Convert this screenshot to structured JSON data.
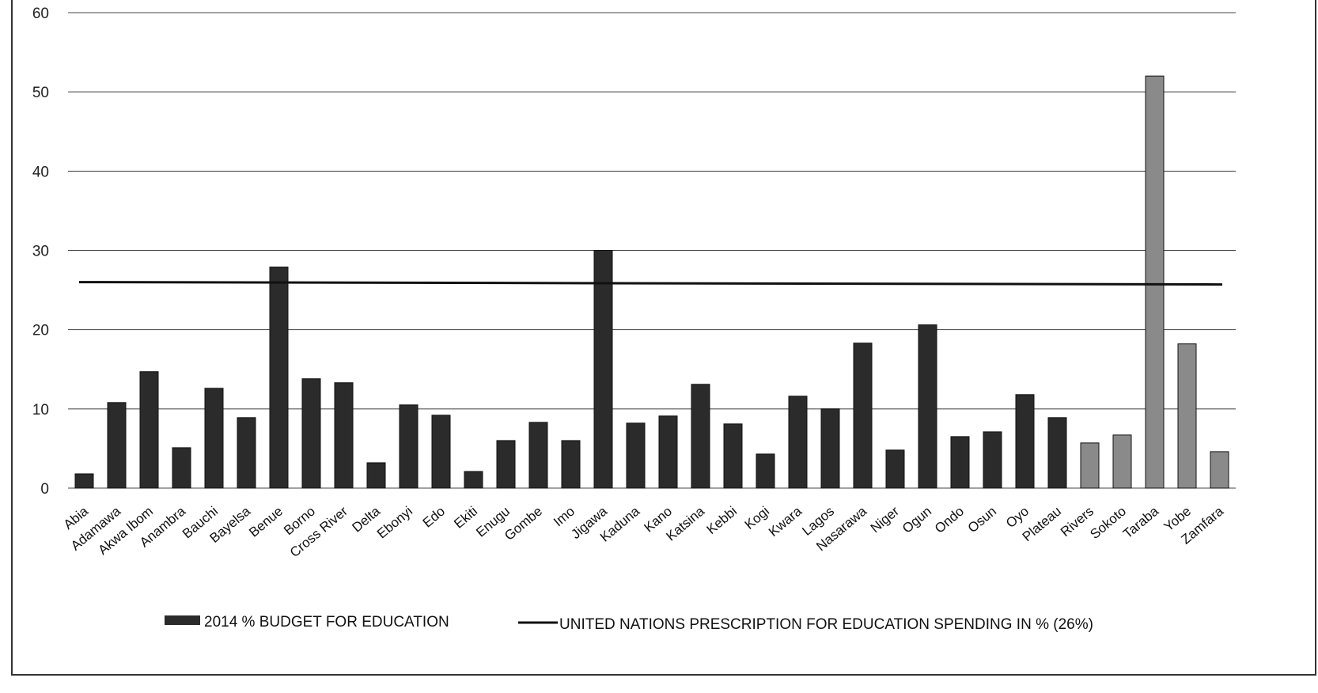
{
  "chart_data": {
    "type": "bar",
    "title": "",
    "xlabel": "",
    "ylabel": "",
    "ylim": [
      0,
      60
    ],
    "yticks": [
      0,
      10,
      20,
      30,
      40,
      50,
      60
    ],
    "grid": true,
    "legend_position": "bottom",
    "categories": [
      "Abia",
      "Adamawa",
      "Akwa Ibom",
      "Anambra",
      "Bauchi",
      "Bayelsa",
      "Benue",
      "Borno",
      "Cross River",
      "Delta",
      "Ebonyi",
      "Edo",
      "Ekiti",
      "Enugu",
      "Gombe",
      "Imo",
      "Jigawa",
      "Kaduna",
      "Kano",
      "Katsina",
      "Kebbi",
      "Kogi",
      "Kwara",
      "Lagos",
      "Nasarawa",
      "Niger",
      "Ogun",
      "Ondo",
      "Osun",
      "Oyo",
      "Plateau",
      "Rivers",
      "Sokoto",
      "Taraba",
      "Yobe",
      "Zamfara"
    ],
    "series": [
      {
        "name": "2014 % BUDGET FOR EDUCATION",
        "values": [
          1.8,
          10.8,
          14.7,
          5.1,
          12.6,
          8.9,
          27.9,
          13.8,
          13.3,
          3.2,
          10.5,
          9.2,
          2.1,
          6.0,
          8.3,
          6.0,
          30.0,
          8.2,
          9.1,
          13.1,
          8.1,
          4.3,
          11.6,
          10.0,
          18.3,
          4.8,
          20.6,
          6.5,
          7.1,
          11.8,
          8.9,
          5.7,
          6.7,
          52.0,
          18.2,
          4.6
        ]
      },
      {
        "name": "UNITED NATIONS PRESCRIPTION FOR EDUCATION SPENDING IN % (26%)",
        "type": "line",
        "value": 26
      }
    ],
    "colors": {
      "bars": "#2b2b2b",
      "bars_light": "#8a8a8a",
      "line": "#111111",
      "grid": "#444444"
    }
  }
}
